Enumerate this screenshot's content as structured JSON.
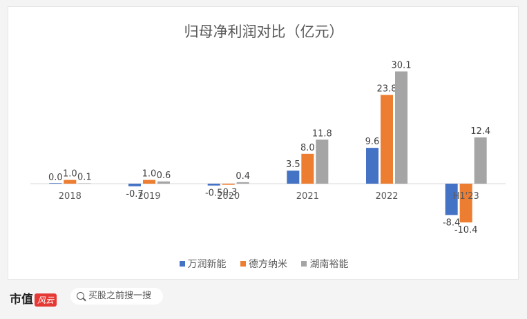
{
  "chart_data": {
    "type": "bar",
    "title": "归母净利润对比（亿元）",
    "categories": [
      "2018",
      "2019",
      "2020",
      "2021",
      "2022",
      "H1'23"
    ],
    "series": [
      {
        "name": "万润新能",
        "color": "#4472c4",
        "values": [
          0.0,
          -0.7,
          -0.5,
          3.5,
          9.6,
          -8.4
        ]
      },
      {
        "name": "德方纳米",
        "color": "#ed7d31",
        "values": [
          1.0,
          1.0,
          -0.3,
          8.0,
          23.8,
          -10.4
        ]
      },
      {
        "name": "湖南裕能",
        "color": "#a5a5a5",
        "values": [
          0.1,
          0.6,
          0.4,
          11.8,
          30.1,
          12.4
        ]
      }
    ],
    "ylim": [
      -12,
      32
    ],
    "grid": false,
    "legend_position": "bottom"
  },
  "footer": {
    "logo_text": "市值",
    "logo_badge": "风云",
    "search_placeholder": "买股之前搜一搜"
  }
}
